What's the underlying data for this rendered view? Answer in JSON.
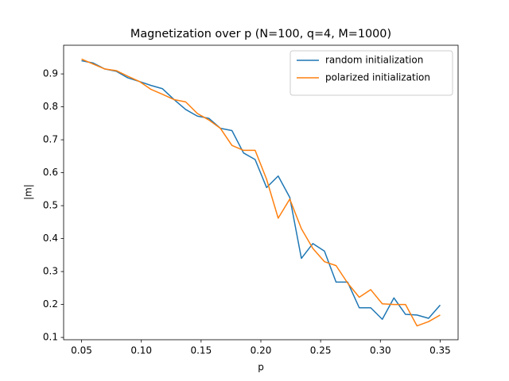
{
  "chart_data": {
    "type": "line",
    "title": "Magnetization over p (N=100, q=4, M=1000)",
    "xlabel": "p",
    "ylabel": "|m|",
    "x": [
      0.05,
      0.0597,
      0.0694,
      0.079,
      0.0887,
      0.0984,
      0.1081,
      0.1177,
      0.1274,
      0.1371,
      0.1468,
      0.1565,
      0.1661,
      0.1758,
      0.1855,
      0.1952,
      0.2048,
      0.2145,
      0.2242,
      0.2339,
      0.2435,
      0.2532,
      0.2629,
      0.2726,
      0.2823,
      0.2919,
      0.3016,
      0.3113,
      0.321,
      0.3306,
      0.3403,
      0.35
    ],
    "series": [
      {
        "name": "random initialization",
        "color": "#1f77b4",
        "values": [
          0.94,
          0.933,
          0.915,
          0.908,
          0.888,
          0.877,
          0.865,
          0.855,
          0.822,
          0.792,
          0.772,
          0.765,
          0.735,
          0.728,
          0.66,
          0.64,
          0.555,
          0.59,
          0.525,
          0.34,
          0.385,
          0.362,
          0.268,
          0.268,
          0.19,
          0.19,
          0.155,
          0.22,
          0.17,
          0.168,
          0.158,
          0.198
        ]
      },
      {
        "name": "polarized initialization",
        "color": "#ff7f0e",
        "values": [
          0.945,
          0.93,
          0.915,
          0.91,
          0.893,
          0.877,
          0.853,
          0.838,
          0.822,
          0.815,
          0.78,
          0.76,
          0.735,
          0.683,
          0.668,
          0.668,
          0.58,
          0.462,
          0.52,
          0.43,
          0.37,
          0.33,
          0.318,
          0.265,
          0.222,
          0.245,
          0.202,
          0.2,
          0.2,
          0.135,
          0.148,
          0.168
        ]
      }
    ],
    "xlim": [
      0.035,
      0.365
    ],
    "ylim": [
      0.093,
      0.987
    ],
    "xticks": [
      0.05,
      {
        "value": 0.1,
        "label": "0.10"
      },
      0.15,
      {
        "value": 0.2,
        "label": "0.20"
      },
      0.25,
      {
        "value": 0.3,
        "label": "0.30"
      },
      0.35
    ],
    "yticks": [
      0.1,
      0.2,
      0.3,
      0.4,
      0.5,
      0.6,
      0.7,
      0.8,
      0.9
    ],
    "legend": "upper right",
    "grid": false
  }
}
